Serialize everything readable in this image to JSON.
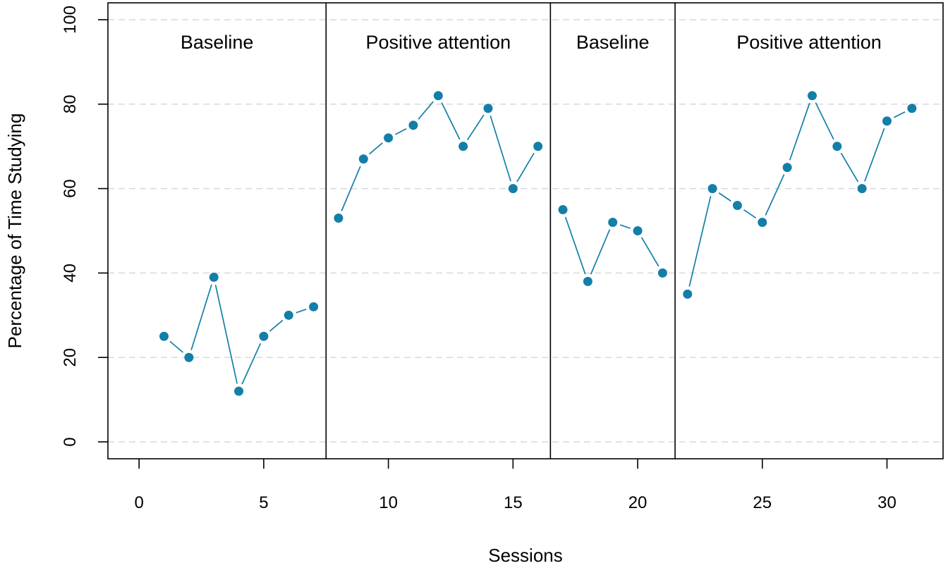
{
  "chart_data": {
    "type": "line",
    "title": "",
    "xlabel": "Sessions",
    "ylabel": "Percentage of Time Studying",
    "xlim": [
      -1.25,
      32.25
    ],
    "ylim": [
      -4,
      104
    ],
    "xticks": [
      0,
      5,
      10,
      15,
      20,
      25,
      30
    ],
    "yticks": [
      0,
      20,
      40,
      60,
      80,
      100
    ],
    "grid": "horizontal-dashed",
    "series_color": "#137fa8",
    "phase_change_lines_x": [
      7.5,
      16.5,
      21.5
    ],
    "phases": [
      {
        "label": "Baseline",
        "sessions": [
          1,
          2,
          3,
          4,
          5,
          6,
          7
        ],
        "values": [
          25,
          20,
          39,
          12,
          25,
          30,
          32
        ]
      },
      {
        "label": "Positive attention",
        "sessions": [
          8,
          9,
          10,
          11,
          12,
          13,
          14,
          15,
          16
        ],
        "values": [
          53,
          67,
          72,
          75,
          82,
          70,
          79,
          60,
          70
        ]
      },
      {
        "label": "Baseline",
        "sessions": [
          17,
          18,
          19,
          20,
          21
        ],
        "values": [
          55,
          38,
          52,
          50,
          40
        ]
      },
      {
        "label": "Positive attention",
        "sessions": [
          22,
          23,
          24,
          25,
          26,
          27,
          28,
          29,
          30,
          31
        ],
        "values": [
          35,
          60,
          56,
          52,
          65,
          82,
          70,
          60,
          76,
          79
        ]
      }
    ]
  }
}
